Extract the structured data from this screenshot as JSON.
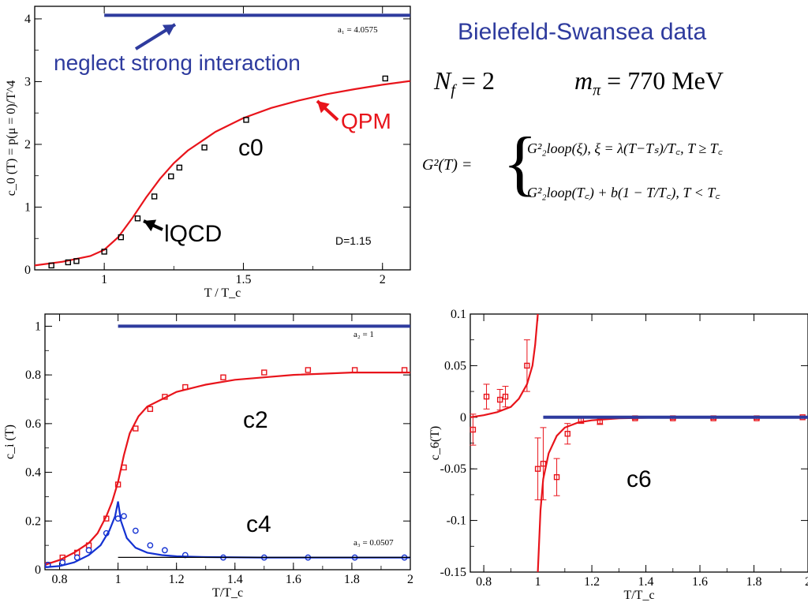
{
  "texts": {
    "title": "Bielefeld-Swansea data",
    "neglect": "neglect strong interaction",
    "qpm": "QPM",
    "lqcd": "lQCD",
    "nf_label": "N",
    "nf_sub": "f",
    "nf_eq": "= 2",
    "mpi_label": "m",
    "mpi_sub": "π",
    "mpi_eq": "= 770 MeV",
    "g2_lhs": "G²(T) =",
    "case1": "G²₂loop(ξ),  ξ = λ(T−Tₛ)/T꜀,   T ≥ T꜀",
    "case2": "G²₂loop(T꜀) + b(1 − T/T꜀),   T < T꜀"
  },
  "chart_data": [
    {
      "type": "line",
      "panel": "c0",
      "xlabel": "T / T_c",
      "ylabel": "c_0 (T) = p(μ = 0)/T^4",
      "xlim": [
        0.75,
        2.1
      ],
      "ylim": [
        0,
        4.2
      ],
      "xticks": [
        1,
        1.5,
        2
      ],
      "xtick_labels": [
        "1",
        "1.5",
        "2"
      ],
      "yticks": [
        0,
        1,
        2,
        3,
        4
      ],
      "ytick_labels": [
        "0",
        "1",
        "2",
        "3",
        "4"
      ],
      "annotations": {
        "a1": "a₁ = 4.0575",
        "D": "D=1.15",
        "curve_label": "c0"
      },
      "series": [
        {
          "name": "QPM",
          "color": "#e8141b",
          "kind": "line",
          "x": [
            0.75,
            0.85,
            0.95,
            1.0,
            1.05,
            1.1,
            1.15,
            1.2,
            1.25,
            1.3,
            1.4,
            1.5,
            1.6,
            1.7,
            1.8,
            1.9,
            2.0,
            2.1
          ],
          "y": [
            0.07,
            0.13,
            0.22,
            0.32,
            0.52,
            0.82,
            1.15,
            1.45,
            1.7,
            1.9,
            2.2,
            2.42,
            2.58,
            2.7,
            2.8,
            2.88,
            2.95,
            3.01
          ]
        },
        {
          "name": "lQCD",
          "color": "#000000",
          "kind": "square",
          "x": [
            0.81,
            0.87,
            0.9,
            1.0,
            1.06,
            1.12,
            1.18,
            1.24,
            1.27,
            1.36,
            1.51,
            2.01
          ],
          "y": [
            0.07,
            0.12,
            0.14,
            0.29,
            0.52,
            0.82,
            1.17,
            1.49,
            1.63,
            1.95,
            2.39,
            3.05
          ]
        },
        {
          "name": "a1",
          "color": "#2e3b9e",
          "kind": "hline",
          "x": [
            1.0,
            2.1
          ],
          "y": [
            4.0575,
            4.0575
          ]
        }
      ]
    },
    {
      "type": "line",
      "panel": "c2c4",
      "xlabel": "T/T_c",
      "ylabel": "c_i (T)",
      "xlim": [
        0.75,
        2.0
      ],
      "ylim": [
        0,
        1.05
      ],
      "xticks": [
        0.8,
        1,
        1.2,
        1.4,
        1.6,
        1.8,
        2
      ],
      "xtick_labels": [
        "0.8",
        "1",
        "1.2",
        "1.4",
        "1.6",
        "1.8",
        "2"
      ],
      "yticks": [
        0,
        0.2,
        0.4,
        0.6,
        0.8,
        1
      ],
      "ytick_labels": [
        "0",
        "0.2",
        "0.4",
        "0.6",
        "0.8",
        "1"
      ],
      "annotations": {
        "a2": "a₂ = 1",
        "a3": "a₃ = 0.0507",
        "label_c2": "c2",
        "label_c4": "c4"
      },
      "series": [
        {
          "name": "c2 QPM",
          "color": "#e8141b",
          "kind": "line",
          "x": [
            0.75,
            0.8,
            0.85,
            0.9,
            0.93,
            0.96,
            0.98,
            1.0,
            1.02,
            1.04,
            1.07,
            1.1,
            1.15,
            1.2,
            1.3,
            1.4,
            1.5,
            1.6,
            1.8,
            2.0
          ],
          "y": [
            0.02,
            0.04,
            0.07,
            0.11,
            0.15,
            0.22,
            0.28,
            0.36,
            0.47,
            0.56,
            0.63,
            0.67,
            0.7,
            0.73,
            0.76,
            0.78,
            0.79,
            0.8,
            0.81,
            0.81
          ]
        },
        {
          "name": "c2 lQCD",
          "color": "#e8141b",
          "kind": "square",
          "x": [
            0.76,
            0.81,
            0.86,
            0.9,
            0.96,
            1.0,
            1.02,
            1.06,
            1.11,
            1.16,
            1.23,
            1.36,
            1.5,
            1.65,
            1.81,
            1.98
          ],
          "y": [
            0.02,
            0.05,
            0.07,
            0.1,
            0.21,
            0.35,
            0.42,
            0.58,
            0.66,
            0.71,
            0.75,
            0.79,
            0.81,
            0.82,
            0.82,
            0.82
          ]
        },
        {
          "name": "c4 QPM",
          "color": "#1432d2",
          "kind": "line",
          "x": [
            0.75,
            0.8,
            0.85,
            0.9,
            0.94,
            0.97,
            0.99,
            1.0,
            1.01,
            1.03,
            1.06,
            1.1,
            1.15,
            1.2,
            1.3,
            1.5,
            2.0
          ],
          "y": [
            0.01,
            0.015,
            0.03,
            0.06,
            0.1,
            0.16,
            0.22,
            0.28,
            0.2,
            0.13,
            0.09,
            0.07,
            0.06,
            0.055,
            0.052,
            0.05,
            0.05
          ]
        },
        {
          "name": "c4 lQCD",
          "color": "#1432d2",
          "kind": "circle",
          "x": [
            0.76,
            0.81,
            0.86,
            0.9,
            0.96,
            1.0,
            1.02,
            1.06,
            1.11,
            1.16,
            1.23,
            1.36,
            1.5,
            1.65,
            1.81,
            1.98
          ],
          "y": [
            0.02,
            0.03,
            0.05,
            0.08,
            0.15,
            0.21,
            0.22,
            0.16,
            0.1,
            0.08,
            0.06,
            0.05,
            0.05,
            0.05,
            0.05,
            0.05
          ]
        },
        {
          "name": "a2",
          "color": "#2e3b9e",
          "kind": "hline",
          "x": [
            1.0,
            2.0
          ],
          "y": [
            1.0,
            1.0
          ]
        },
        {
          "name": "a3",
          "color": "#000000",
          "kind": "hline",
          "x": [
            1.0,
            2.0
          ],
          "y": [
            0.0507,
            0.0507
          ]
        }
      ]
    },
    {
      "type": "line",
      "panel": "c6",
      "xlabel": "T/T_c",
      "ylabel": "c_6(T)",
      "xlim": [
        0.75,
        2.0
      ],
      "ylim": [
        -0.15,
        0.1
      ],
      "xticks": [
        0.8,
        1,
        1.2,
        1.4,
        1.6,
        1.8,
        2
      ],
      "xtick_labels": [
        "0.8",
        "1",
        "1.2",
        "1.4",
        "1.6",
        "1.8",
        "2"
      ],
      "yticks": [
        -0.15,
        -0.1,
        -0.05,
        0,
        0.05,
        0.1
      ],
      "ytick_labels": [
        "-0.15",
        "-0.1",
        "-0.05",
        "0",
        "0.05",
        "0.1"
      ],
      "annotations": {
        "label_c6": "c6"
      },
      "series": [
        {
          "name": "c6 QPM left",
          "color": "#e8141b",
          "kind": "line",
          "x": [
            0.75,
            0.8,
            0.85,
            0.9,
            0.93,
            0.96,
            0.98,
            0.99,
            1.0
          ],
          "y": [
            0.0,
            0.002,
            0.005,
            0.01,
            0.018,
            0.032,
            0.05,
            0.07,
            0.1
          ]
        },
        {
          "name": "c6 QPM right",
          "color": "#e8141b",
          "kind": "line",
          "x": [
            1.0,
            1.01,
            1.02,
            1.04,
            1.07,
            1.1,
            1.15,
            1.2,
            1.3,
            1.5,
            2.0
          ],
          "y": [
            -0.15,
            -0.09,
            -0.06,
            -0.035,
            -0.018,
            -0.01,
            -0.005,
            -0.003,
            -0.001,
            0.0,
            0.0
          ]
        },
        {
          "name": "c6 lQCD",
          "color": "#e8141b",
          "kind": "errbar",
          "x": [
            0.76,
            0.81,
            0.86,
            0.88,
            0.96,
            1.0,
            1.02,
            1.07,
            1.11,
            1.16,
            1.23,
            1.36,
            1.5,
            1.65,
            1.81,
            1.98
          ],
          "y": [
            -0.012,
            0.02,
            0.017,
            0.02,
            0.05,
            -0.05,
            -0.045,
            -0.058,
            -0.016,
            -0.003,
            -0.004,
            -0.001,
            -0.001,
            -0.001,
            -0.001,
            0.0
          ],
          "err": [
            0.015,
            0.012,
            0.01,
            0.01,
            0.025,
            0.03,
            0.035,
            0.018,
            0.01,
            0.003,
            0.003,
            0.001,
            0.001,
            0.001,
            0.001,
            0.001
          ]
        },
        {
          "name": "a6",
          "color": "#2e3b9e",
          "kind": "hline",
          "x": [
            1.02,
            2.0
          ],
          "y": [
            0.0,
            0.0
          ]
        }
      ]
    }
  ]
}
